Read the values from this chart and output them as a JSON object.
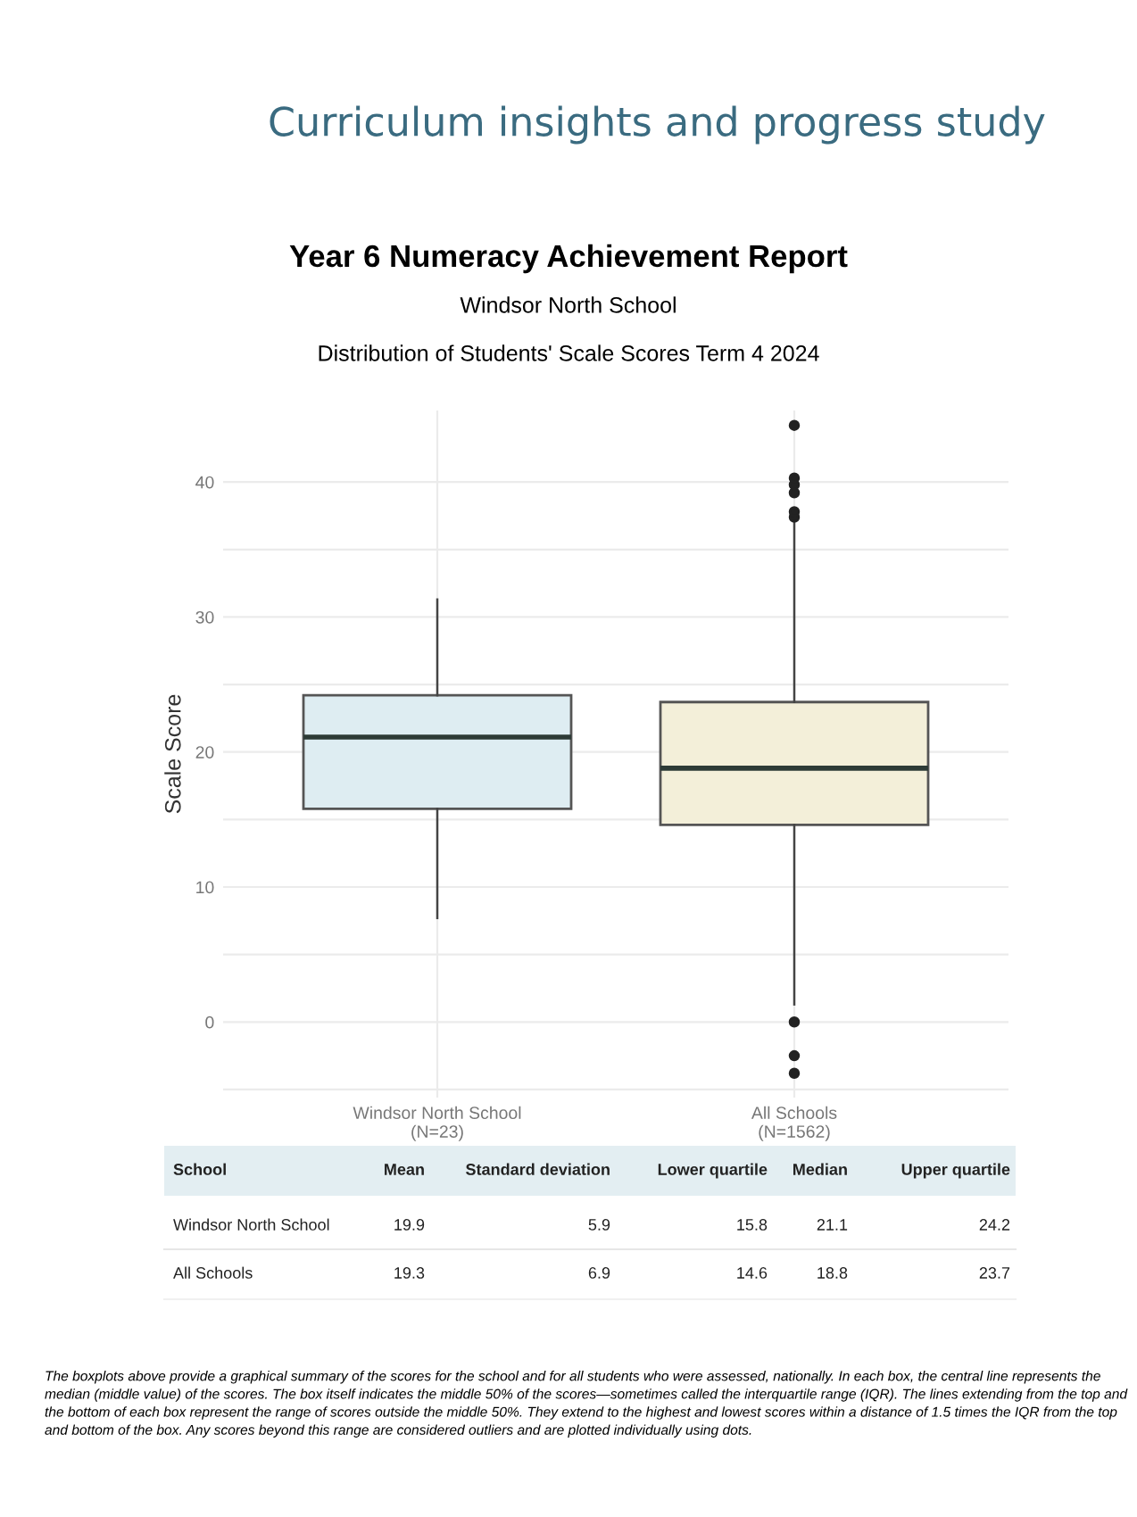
{
  "chart_data": {
    "type": "box",
    "title": "Year 6 Numeracy Achievement Report",
    "subtitle": "Windsor North School",
    "ylabel": "Scale Score",
    "categories": [
      "Windsor North School\n(N=23)",
      "All Schools\n(N=1562)"
    ],
    "colors": [
      "#deedf2",
      "#f3efd9"
    ],
    "boxes": [
      {
        "low": 7.7,
        "q1": 15.8,
        "median": 21.1,
        "q3": 24.2,
        "high": 31.3
      },
      {
        "low": 1.3,
        "q1": 14.6,
        "median": 18.8,
        "q3": 23.7,
        "high": 37.2,
        "outliers": [
          37.4,
          37.8,
          39.2,
          39.8,
          40.3,
          44.2,
          0,
          -2.5,
          -3.8
        ]
      }
    ],
    "ylim": [
      -5.6,
      45.3
    ],
    "yticks": [
      {
        "value": -5,
        "label": null
      },
      0,
      {
        "value": 5,
        "label": null
      },
      10,
      {
        "value": 15,
        "label": null
      },
      20,
      {
        "value": 25,
        "label": null
      },
      30,
      {
        "value": 35,
        "label": null
      },
      40
    ],
    "grid": true,
    "annotations": [
      "Curriculum insights and progress study",
      "Distribution of Students' Scale Scores Term 4 2024",
      "School",
      "Mean",
      "Standard deviation",
      "Lower quartile",
      "Median",
      "Upper quartile",
      "Windsor North School",
      "19.9",
      "5.9",
      "15.8",
      "21.1",
      "24.2",
      "All Schools",
      "19.3",
      "6.9",
      "14.6",
      "18.8",
      "23.7",
      "The boxplots above provide a graphical summary of the scores for the school and for all students who were assessed, nationally. In each box, the central line represents the median (middle value) of the scores. The box itself indicates the middle 50% of the scores—sometimes called the interquartile range (IQR). The lines extending from the top and the bottom of each box represent the range of scores outside the middle 50%. They extend to the highest and lowest scores within a distance of 1.5 times the IQR from the top and bottom of the box. Any scores beyond this range are considered outliers and are plotted individually using dots."
    ]
  }
}
